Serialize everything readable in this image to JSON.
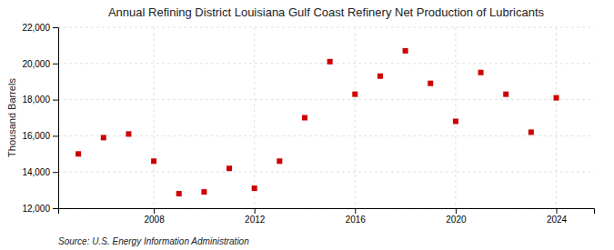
{
  "chart_data": {
    "type": "scatter",
    "title": "Annual Refining District Louisiana Gulf Coast Refinery Net Production of Lubricants",
    "ylabel": "Thousand Barrels",
    "source": "Source: U.S. Energy Information Administration",
    "x": [
      2005,
      2006,
      2007,
      2008,
      2009,
      2010,
      2011,
      2012,
      2013,
      2014,
      2015,
      2016,
      2017,
      2018,
      2019,
      2020,
      2021,
      2022,
      2023,
      2024
    ],
    "values": [
      15000,
      15900,
      16100,
      14600,
      12800,
      12900,
      14200,
      13100,
      14600,
      17000,
      20100,
      18300,
      19300,
      20700,
      18900,
      16800,
      19500,
      18300,
      16200,
      18100
    ],
    "color": "#cc0000",
    "marker": "square",
    "xlim": [
      2004.2,
      2025.5
    ],
    "xticks": [
      2008,
      2012,
      2016,
      2020,
      2024
    ],
    "ylim": [
      12000,
      22000
    ],
    "yticks": [
      {
        "value": 12000,
        "label": "12,000"
      },
      {
        "value": 14000,
        "label": "14,000"
      },
      {
        "value": 16000,
        "label": "16,000"
      },
      {
        "value": 18000,
        "label": "18,000"
      },
      {
        "value": 20000,
        "label": "20,000"
      },
      {
        "value": 22000,
        "label": "22,000"
      }
    ],
    "grid": true
  }
}
